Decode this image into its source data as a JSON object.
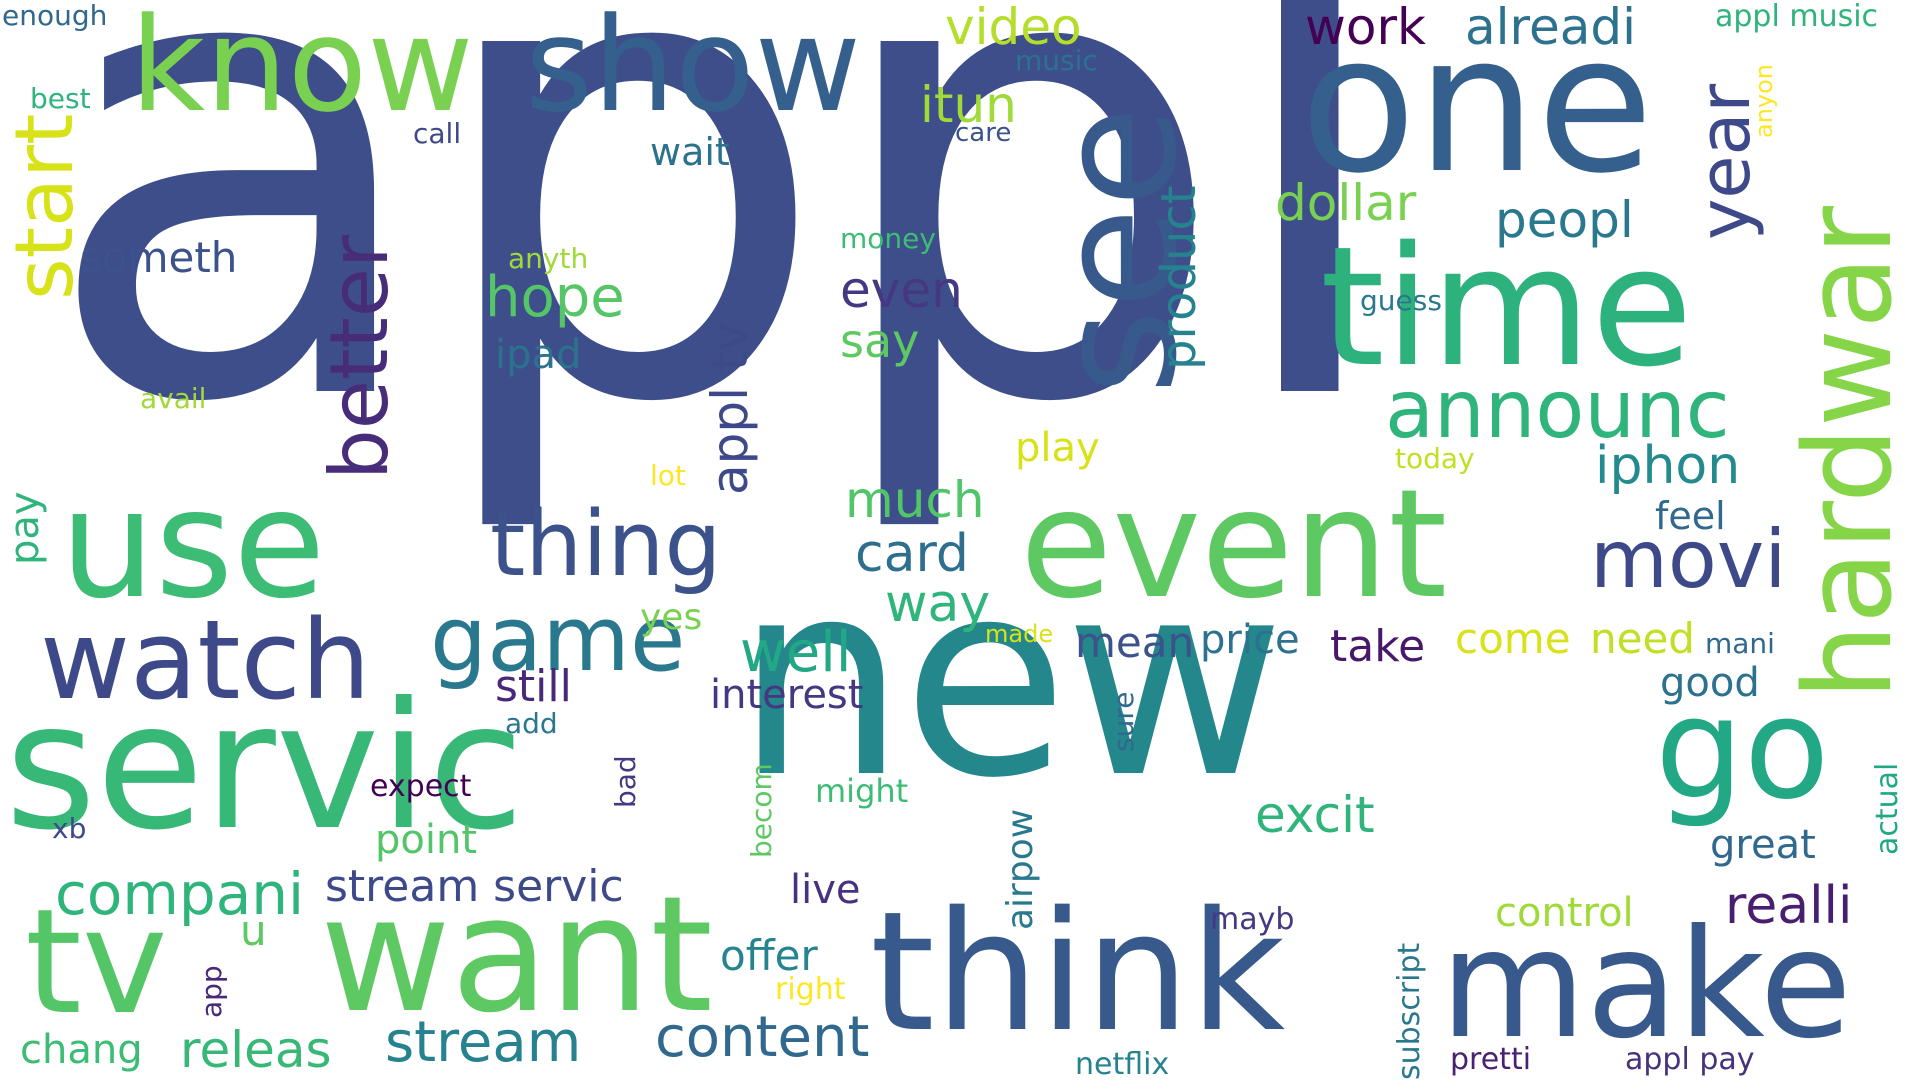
{
  "palette": {
    "c1": "#3d4e8a",
    "c2": "#35608d",
    "c3": "#2a788e",
    "c4": "#21918c",
    "c5": "#2fb47c",
    "c6": "#55c667",
    "c7": "#7ad151",
    "c8": "#b5de2b",
    "c9": "#d8e219",
    "c10": "#fde725",
    "c11": "#440154",
    "c12": "#482677"
  },
  "words": [
    {
      "text": "appl",
      "color": "#3d4e8a"
    },
    {
      "text": "new",
      "color": "#23878c"
    },
    {
      "text": "servic",
      "color": "#37b877"
    },
    {
      "text": "use",
      "color": "#3cbc74"
    },
    {
      "text": "event",
      "color": "#5ec962"
    },
    {
      "text": "one",
      "color": "#35608d"
    },
    {
      "text": "time",
      "color": "#2db27d"
    },
    {
      "text": "see",
      "color": "#38598c"
    },
    {
      "text": "know",
      "color": "#7ad151"
    },
    {
      "text": "show",
      "color": "#35608d"
    },
    {
      "text": "hardwar",
      "color": "#86d549"
    },
    {
      "text": "want",
      "color": "#5ec962"
    },
    {
      "text": "think",
      "color": "#38598c"
    },
    {
      "text": "make",
      "color": "#38598c"
    },
    {
      "text": "tv",
      "color": "#55c667"
    },
    {
      "text": "go",
      "color": "#22a884"
    },
    {
      "text": "watch",
      "color": "#3e4989"
    },
    {
      "text": "game",
      "color": "#2a788e"
    },
    {
      "text": "thing",
      "color": "#3b528b"
    },
    {
      "text": "movi",
      "color": "#3e4989"
    },
    {
      "text": "announc",
      "color": "#2fb47c"
    },
    {
      "text": "start",
      "color": "#d8e219"
    },
    {
      "text": "better",
      "color": "#472c7a"
    },
    {
      "text": "year",
      "color": "#3e4989"
    },
    {
      "text": "compani",
      "color": "#2fb47c"
    },
    {
      "text": "appl tv",
      "color": "#3e4989"
    },
    {
      "text": "product",
      "color": "#26828e"
    },
    {
      "text": "stream",
      "color": "#26828e"
    },
    {
      "text": "content",
      "color": "#31688e"
    },
    {
      "text": "realli",
      "color": "#481f70"
    },
    {
      "text": "releas",
      "color": "#37b877"
    },
    {
      "text": "stream servic",
      "color": "#3e4989"
    },
    {
      "text": "well",
      "color": "#22a884"
    },
    {
      "text": "hope",
      "color": "#55c667"
    },
    {
      "text": "even",
      "color": "#453781"
    },
    {
      "text": "iphon",
      "color": "#238a8d"
    },
    {
      "text": "peopl",
      "color": "#2a788e"
    },
    {
      "text": "dollar",
      "color": "#7ad151"
    },
    {
      "text": "work",
      "color": "#440154"
    },
    {
      "text": "alreadi",
      "color": "#2c728e"
    },
    {
      "text": "video",
      "color": "#b5de2b"
    },
    {
      "text": "itun",
      "color": "#a0da39"
    },
    {
      "text": "much",
      "color": "#52c569"
    },
    {
      "text": "card",
      "color": "#2e6e8e"
    },
    {
      "text": "way",
      "color": "#2fb47c"
    },
    {
      "text": "excit",
      "color": "#2fb47c"
    },
    {
      "text": "control",
      "color": "#a0da39"
    },
    {
      "text": "great",
      "color": "#31688e"
    },
    {
      "text": "take",
      "color": "#48186a"
    },
    {
      "text": "come",
      "color": "#d8e219"
    },
    {
      "text": "need",
      "color": "#c2df23"
    },
    {
      "text": "mean",
      "color": "#3b528b"
    },
    {
      "text": "price",
      "color": "#2c728e"
    },
    {
      "text": "still",
      "color": "#482878"
    },
    {
      "text": "interest",
      "color": "#453781"
    },
    {
      "text": "someth",
      "color": "#3b528b"
    },
    {
      "text": "say",
      "color": "#5ec962"
    },
    {
      "text": "ipad",
      "color": "#2c728e"
    },
    {
      "text": "offer",
      "color": "#25848e"
    },
    {
      "text": "point",
      "color": "#52c569"
    },
    {
      "text": "live",
      "color": "#46327e"
    },
    {
      "text": "chang",
      "color": "#3cbc74"
    },
    {
      "text": "u",
      "color": "#5ec962"
    },
    {
      "text": "airpow",
      "color": "#2a788e"
    },
    {
      "text": "good",
      "color": "#2c728e"
    },
    {
      "text": "feel",
      "color": "#31688e"
    },
    {
      "text": "play",
      "color": "#d8e219"
    },
    {
      "text": "wait",
      "color": "#2c728e"
    },
    {
      "text": "might",
      "color": "#3cbc74"
    },
    {
      "text": "expect",
      "color": "#440154"
    },
    {
      "text": "mayb",
      "color": "#443983"
    },
    {
      "text": "pretti",
      "color": "#482173"
    },
    {
      "text": "appl pay",
      "color": "#46327e"
    },
    {
      "text": "netflix",
      "color": "#26828e"
    },
    {
      "text": "subscript",
      "color": "#2a788e"
    },
    {
      "text": "right",
      "color": "#fde725"
    },
    {
      "text": "app",
      "color": "#482878"
    },
    {
      "text": "add",
      "color": "#2a788e"
    },
    {
      "text": "bad",
      "color": "#443983"
    },
    {
      "text": "becom",
      "color": "#5ec962"
    },
    {
      "text": "xb",
      "color": "#3e4989"
    },
    {
      "text": "pay",
      "color": "#2fb47c"
    },
    {
      "text": "yes",
      "color": "#7ad151"
    },
    {
      "text": "lot",
      "color": "#fde725"
    },
    {
      "text": "made",
      "color": "#d8e219"
    },
    {
      "text": "sure",
      "color": "#31688e"
    },
    {
      "text": "actual",
      "color": "#22a884"
    },
    {
      "text": "mani",
      "color": "#31688e"
    },
    {
      "text": "today",
      "color": "#c2df23"
    },
    {
      "text": "guess",
      "color": "#2a788e"
    },
    {
      "text": "money",
      "color": "#3cbc74"
    },
    {
      "text": "anyth",
      "color": "#a0da39"
    },
    {
      "text": "avail",
      "color": "#a0da39"
    },
    {
      "text": "care",
      "color": "#3b528b"
    },
    {
      "text": "call",
      "color": "#3e4989"
    },
    {
      "text": "music",
      "color": "#2c728e"
    },
    {
      "text": "appl music",
      "color": "#2fb47c"
    },
    {
      "text": "anyon",
      "color": "#fde725"
    },
    {
      "text": "enough",
      "color": "#31688e"
    },
    {
      "text": "best",
      "color": "#2fb47c"
    }
  ]
}
